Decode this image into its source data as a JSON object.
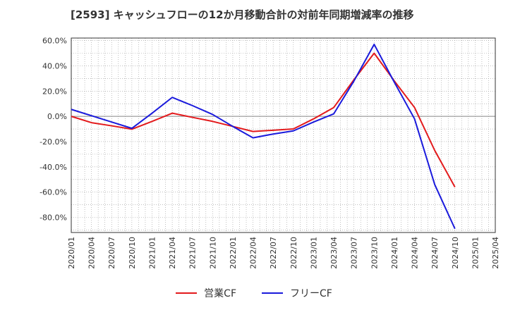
{
  "chart_data": {
    "type": "line",
    "title": "[2593]  キャッシュフローの12か月移動合計の対前年同期増減率の推移",
    "xlabel": "",
    "ylabel": "",
    "ylim": [
      -92,
      62
    ],
    "yticks": [
      60,
      40,
      20,
      0,
      -20,
      -40,
      -60,
      -80
    ],
    "ytick_labels": [
      "60.0%",
      "40.0%",
      "20.0%",
      "0.0%",
      "-20.0%",
      "-40.0%",
      "-60.0%",
      "-80.0%"
    ],
    "categories": [
      "2020/01",
      "2020/04",
      "2020/07",
      "2020/10",
      "2021/01",
      "2021/04",
      "2021/07",
      "2021/10",
      "2022/01",
      "2022/04",
      "2022/07",
      "2022/10",
      "2023/01",
      "2023/04",
      "2023/07",
      "2023/10",
      "2024/01",
      "2024/04",
      "2024/07",
      "2024/10",
      "2025/01",
      "2025/04"
    ],
    "series": [
      {
        "name": "営業CF",
        "color": "#e31a1c",
        "values": [
          0.0,
          -5.0,
          -7.5,
          -10.2,
          -4.0,
          2.5,
          -0.8,
          -4.0,
          -8.0,
          -12.0,
          -11.0,
          -10.0,
          -2.0,
          7.0,
          29.0,
          50.0,
          28.0,
          7.0,
          -27.0,
          -56.0,
          null,
          null
        ]
      },
      {
        "name": "フリーCF",
        "color": "#1a1adc",
        "values": [
          5.5,
          0.5,
          -4.5,
          -9.5,
          2.5,
          15.0,
          8.5,
          1.5,
          -8.0,
          -17.0,
          -14.0,
          -11.5,
          -4.5,
          2.0,
          28.0,
          57.0,
          27.0,
          -2.0,
          -54.0,
          -89.0,
          null,
          null
        ]
      }
    ],
    "legend_position": "bottom-center",
    "grid": true
  }
}
